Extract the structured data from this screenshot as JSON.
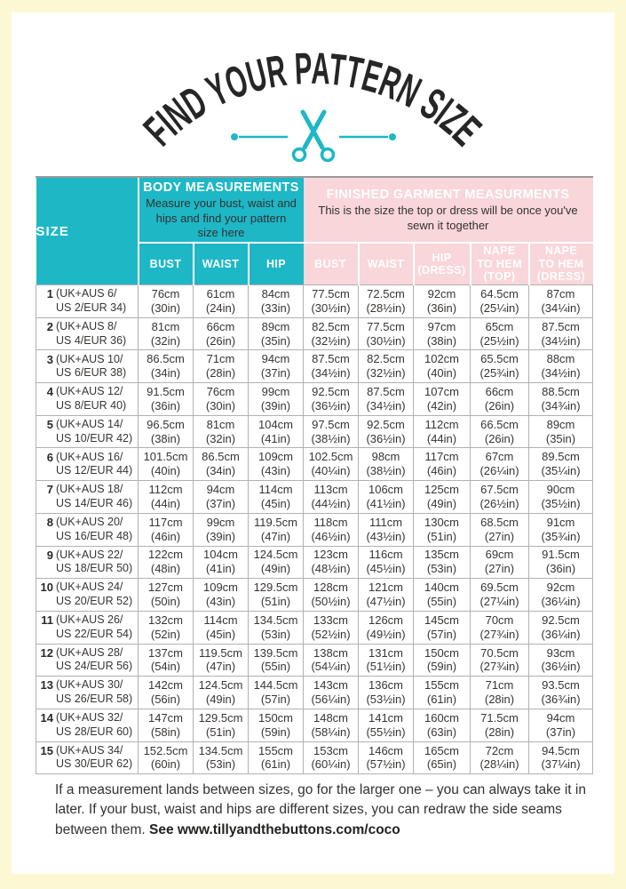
{
  "title": "FIND YOUR PATTERN SIZE",
  "colors": {
    "teal": "#1eb7c6",
    "pink": "#f8d6da",
    "yellow": "#fdf8d4"
  },
  "footer": {
    "text": "If a measurement lands between sizes, go for the larger one – you can always take it in later. If your bust, waist and hips are different sizes, you can redraw the side seams between them. ",
    "bold": "See www.tillyandthebuttons.com/coco"
  },
  "table": {
    "size_header": "SIZE",
    "body_group": {
      "title": "BODY MEASUREMENTS",
      "subtitle": "Measure your bust, waist and hips and find your pattern size here",
      "columns": [
        "BUST",
        "WAIST",
        "HIP"
      ]
    },
    "garment_group": {
      "title": "FINISHED GARMENT MEASURMENTS",
      "subtitle": "This is the size the top or dress will be once you've sewn it together",
      "columns": [
        "BUST",
        "WAIST",
        "HIP\n(DRESS)",
        "NAPE\nTO HEM\n(TOP)",
        "NAPE\nTO HEM\n(DRESS)"
      ]
    },
    "column_keys": [
      "body-bust",
      "body-waist",
      "body-hip",
      "garment-bust",
      "garment-waist",
      "hip-dress",
      "nape-to-hem-top",
      "nape-to-hem-dress"
    ],
    "rows": [
      {
        "num": "1",
        "l1": "(UK+AUS 6/",
        "l2": "US 2/EUR 34)",
        "cells": [
          [
            "76cm",
            "(30in)"
          ],
          [
            "61cm",
            "(24in)"
          ],
          [
            "84cm",
            "(33in)"
          ],
          [
            "77.5cm",
            "(30½in)"
          ],
          [
            "72.5cm",
            "(28½in)"
          ],
          [
            "92cm",
            "(36in)"
          ],
          [
            "64.5cm",
            "(25¼in)"
          ],
          [
            "87cm",
            "(34¼in)"
          ]
        ]
      },
      {
        "num": "2",
        "l1": "(UK+AUS 8/",
        "l2": "US 4/EUR 36)",
        "cells": [
          [
            "81cm",
            "(32in)"
          ],
          [
            "66cm",
            "(26in)"
          ],
          [
            "89cm",
            "(35in)"
          ],
          [
            "82.5cm",
            "(32½in)"
          ],
          [
            "77.5cm",
            "(30½in)"
          ],
          [
            "97cm",
            "(38in)"
          ],
          [
            "65cm",
            "(25½in)"
          ],
          [
            "87.5cm",
            "(34½in)"
          ]
        ]
      },
      {
        "num": "3",
        "l1": "(UK+AUS 10/",
        "l2": "US 6/EUR 38)",
        "cells": [
          [
            "86.5cm",
            "(34in)"
          ],
          [
            "71cm",
            "(28in)"
          ],
          [
            "94cm",
            "(37in)"
          ],
          [
            "87.5cm",
            "(34½in)"
          ],
          [
            "82.5cm",
            "(32½in)"
          ],
          [
            "102cm",
            "(40in)"
          ],
          [
            "65.5cm",
            "(25¾in)"
          ],
          [
            "88cm",
            "(34½in)"
          ]
        ]
      },
      {
        "num": "4",
        "l1": "(UK+AUS 12/",
        "l2": "US 8/EUR 40)",
        "cells": [
          [
            "91.5cm",
            "(36in)"
          ],
          [
            "76cm",
            "(30in)"
          ],
          [
            "99cm",
            "(39in)"
          ],
          [
            "92.5cm",
            "(36½in)"
          ],
          [
            "87.5cm",
            "(34½in)"
          ],
          [
            "107cm",
            "(42in)"
          ],
          [
            "66cm",
            "(26in)"
          ],
          [
            "88.5cm",
            "(34¾in)"
          ]
        ]
      },
      {
        "num": "5",
        "l1": "(UK+AUS 14/",
        "l2": "US 10/EUR 42)",
        "cells": [
          [
            "96.5cm",
            "(38in)"
          ],
          [
            "81cm",
            "(32in)"
          ],
          [
            "104cm",
            "(41in)"
          ],
          [
            "97.5cm",
            "(38½in)"
          ],
          [
            "92.5cm",
            "(36½in)"
          ],
          [
            "112cm",
            "(44in)"
          ],
          [
            "66.5cm",
            "(26in)"
          ],
          [
            "89cm",
            "(35in)"
          ]
        ]
      },
      {
        "num": "6",
        "l1": "(UK+AUS 16/",
        "l2": "US 12/EUR 44)",
        "cells": [
          [
            "101.5cm",
            "(40in)"
          ],
          [
            "86.5cm",
            "(34in)"
          ],
          [
            "109cm",
            "(43in)"
          ],
          [
            "102.5cm",
            "(40¼in)"
          ],
          [
            "98cm",
            "(38½in)"
          ],
          [
            "117cm",
            "(46in)"
          ],
          [
            "67cm",
            "(26¼in)"
          ],
          [
            "89.5cm",
            "(35¼in)"
          ]
        ]
      },
      {
        "num": "7",
        "l1": "(UK+AUS 18/",
        "l2": "US 14/EUR 46)",
        "cells": [
          [
            "112cm",
            "(44in)"
          ],
          [
            "94cm",
            "(37in)"
          ],
          [
            "114cm",
            "(45in)"
          ],
          [
            "113cm",
            "(44½in)"
          ],
          [
            "106cm",
            "(41½in)"
          ],
          [
            "125cm",
            "(49in)"
          ],
          [
            "67.5cm",
            "(26½in)"
          ],
          [
            "90cm",
            "(35½in)"
          ]
        ]
      },
      {
        "num": "8",
        "l1": "(UK+AUS 20/",
        "l2": "US 16/EUR 48)",
        "cells": [
          [
            "117cm",
            "(46in)"
          ],
          [
            "99cm",
            "(39in)"
          ],
          [
            "119.5cm",
            "(47in)"
          ],
          [
            "118cm",
            "(46½in)"
          ],
          [
            "111cm",
            "(43½in)"
          ],
          [
            "130cm",
            "(51in)"
          ],
          [
            "68.5cm",
            "(27in)"
          ],
          [
            "91cm",
            "(35¾in)"
          ]
        ]
      },
      {
        "num": "9",
        "l1": "(UK+AUS 22/",
        "l2": "US 18/EUR 50)",
        "cells": [
          [
            "122cm",
            "(48in)"
          ],
          [
            "104cm",
            "(41in)"
          ],
          [
            "124.5cm",
            "(49in)"
          ],
          [
            "123cm",
            "(48½in)"
          ],
          [
            "116cm",
            "(45½in)"
          ],
          [
            "135cm",
            "(53in)"
          ],
          [
            "69cm",
            "(27in)"
          ],
          [
            "91.5cm",
            "(36in)"
          ]
        ]
      },
      {
        "num": "10",
        "l1": "(UK+AUS 24/",
        "l2": "US 20/EUR 52)",
        "cells": [
          [
            "127cm",
            "(50in)"
          ],
          [
            "109cm",
            "(43in)"
          ],
          [
            "129.5cm",
            "(51in)"
          ],
          [
            "128cm",
            "(50½in)"
          ],
          [
            "121cm",
            "(47½in)"
          ],
          [
            "140cm",
            "(55in)"
          ],
          [
            "69.5cm",
            "(27¼in)"
          ],
          [
            "92cm",
            "(36¼in)"
          ]
        ]
      },
      {
        "num": "11",
        "l1": "(UK+AUS 26/",
        "l2": "US 22/EUR 54)",
        "cells": [
          [
            "132cm",
            "(52in)"
          ],
          [
            "114cm",
            "(45in)"
          ],
          [
            "134.5cm",
            "(53in)"
          ],
          [
            "133cm",
            "(52½in)"
          ],
          [
            "126cm",
            "(49½in)"
          ],
          [
            "145cm",
            "(57in)"
          ],
          [
            "70cm",
            "(27¾in)"
          ],
          [
            "92.5cm",
            "(36¼in)"
          ]
        ]
      },
      {
        "num": "12",
        "l1": "(UK+AUS 28/",
        "l2": "US 24/EUR 56)",
        "cells": [
          [
            "137cm",
            "(54in)"
          ],
          [
            "119.5cm",
            "(47in)"
          ],
          [
            "139.5cm",
            "(55in)"
          ],
          [
            "138cm",
            "(54¼in)"
          ],
          [
            "131cm",
            "(51½in)"
          ],
          [
            "150cm",
            "(59in)"
          ],
          [
            "70.5cm",
            "(27¾in)"
          ],
          [
            "93cm",
            "(36½in)"
          ]
        ]
      },
      {
        "num": "13",
        "l1": "(UK+AUS 30/",
        "l2": "US 26/EUR 58)",
        "cells": [
          [
            "142cm",
            "(56in)"
          ],
          [
            "124.5cm",
            "(49in)"
          ],
          [
            "144.5cm",
            "(57in)"
          ],
          [
            "143cm",
            "(56¼in)"
          ],
          [
            "136cm",
            "(53½in)"
          ],
          [
            "155cm",
            "(61in)"
          ],
          [
            "71cm",
            "(28in)"
          ],
          [
            "93.5cm",
            "(36¾in)"
          ]
        ]
      },
      {
        "num": "14",
        "l1": "(UK+AUS 32/",
        "l2": "US 28/EUR 60)",
        "cells": [
          [
            "147cm",
            "(58in)"
          ],
          [
            "129.5cm",
            "(51in)"
          ],
          [
            "150cm",
            "(59in)"
          ],
          [
            "148cm",
            "(58¼in)"
          ],
          [
            "141cm",
            "(55½in)"
          ],
          [
            "160cm",
            "(63in)"
          ],
          [
            "71.5cm",
            "(28in)"
          ],
          [
            "94cm",
            "(37in)"
          ]
        ]
      },
      {
        "num": "15",
        "l1": "(UK+AUS 34/",
        "l2": "US 30/EUR 62)",
        "cells": [
          [
            "152.5cm",
            "(60in)"
          ],
          [
            "134.5cm",
            "(53in)"
          ],
          [
            "155cm",
            "(61in)"
          ],
          [
            "153cm",
            "(60¼in)"
          ],
          [
            "146cm",
            "(57½in)"
          ],
          [
            "165cm",
            "(65in)"
          ],
          [
            "72cm",
            "(28¼in)"
          ],
          [
            "94.5cm",
            "(37¼in)"
          ]
        ]
      }
    ]
  }
}
